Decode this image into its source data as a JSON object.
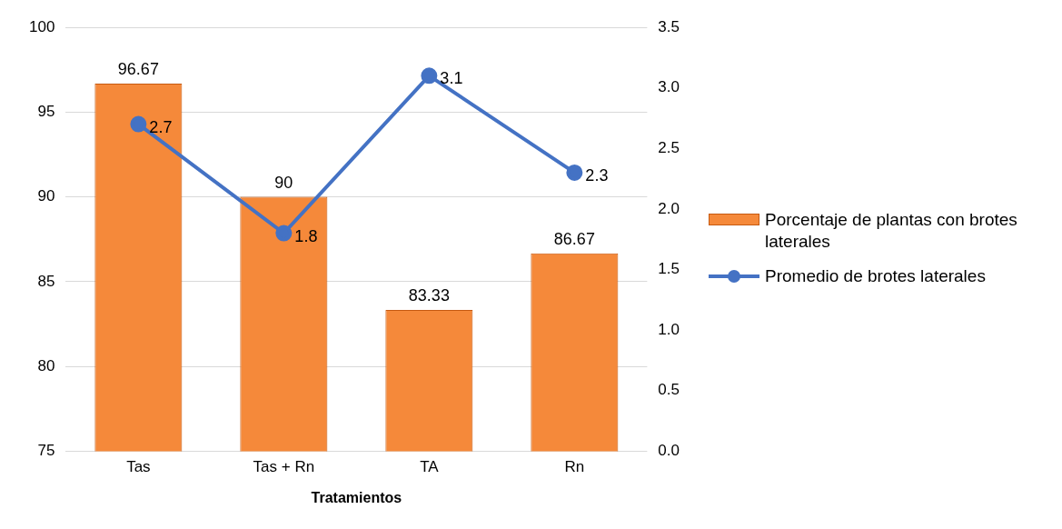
{
  "chart_data": {
    "type": "bar",
    "xlabel": "Tratamientos",
    "categories": [
      "Tas",
      "Tas + Rn",
      "TA",
      "Rn"
    ],
    "series": [
      {
        "name": "Porcentaje de plantas con brotes laterales",
        "color": "#f5893a",
        "values": [
          96.67,
          90,
          83.33,
          86.67
        ]
      },
      {
        "name": "Promedio de brotes laterales",
        "type": "line",
        "axis": "y2",
        "color": "#4472c4",
        "values": [
          2.7,
          1.8,
          3.1,
          2.3
        ]
      }
    ],
    "ylim": [
      75,
      100
    ],
    "yticks": [
      75,
      80,
      85,
      90,
      95,
      100
    ],
    "y2lim": [
      0,
      3.5
    ],
    "y2ticks": [
      {
        "value": 0,
        "label": "0.0"
      },
      {
        "value": 0.5,
        "label": "0.5"
      },
      {
        "value": 1,
        "label": "1.0"
      },
      {
        "value": 1.5,
        "label": "1.5"
      },
      {
        "value": 2,
        "label": "2.0"
      },
      {
        "value": 2.5,
        "label": "2.5"
      },
      {
        "value": 3,
        "label": "3.0"
      },
      {
        "value": 3.5,
        "label": "3.5"
      }
    ],
    "data_labels": true,
    "grid": "y",
    "legend": "right",
    "marker": "circle",
    "line_style": "solid"
  }
}
